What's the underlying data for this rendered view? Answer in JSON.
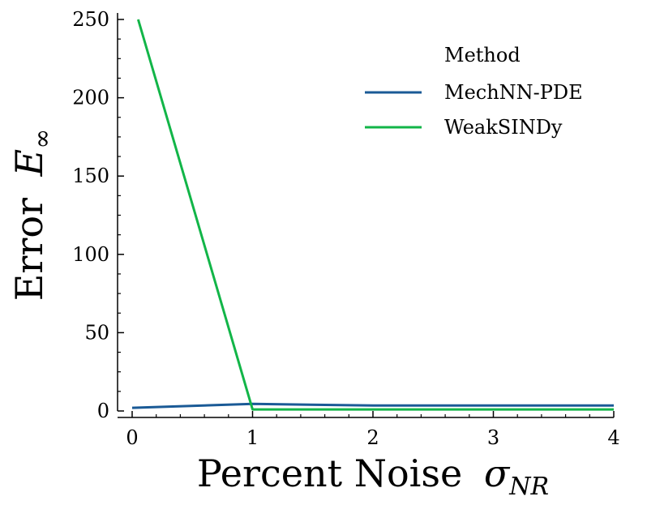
{
  "chart_data": {
    "type": "line",
    "title": "",
    "xlabel": "Percent Noise",
    "xlabel_symbol": "σ",
    "xlabel_subscript": "NR",
    "ylabel": "Error",
    "ylabel_symbol": "E",
    "ylabel_subscript": "∞",
    "xlim": [
      0,
      4
    ],
    "ylim": [
      0,
      250
    ],
    "xticks": [
      0,
      1,
      2,
      3,
      4
    ],
    "yticks": [
      0,
      50,
      100,
      150,
      200,
      250
    ],
    "grid": false,
    "legend": {
      "title": "Method",
      "position": "top-right"
    },
    "series": [
      {
        "name": "MechNN-PDE",
        "color": "#1a5a96",
        "x": [
          0,
          1,
          2,
          3,
          4
        ],
        "y": [
          2,
          4.5,
          3.5,
          3.5,
          3.5
        ]
      },
      {
        "name": "WeakSINDy",
        "color": "#12b548",
        "x": [
          0.05,
          1,
          2,
          3,
          4
        ],
        "y": [
          250,
          1,
          1,
          1,
          1
        ]
      }
    ]
  }
}
